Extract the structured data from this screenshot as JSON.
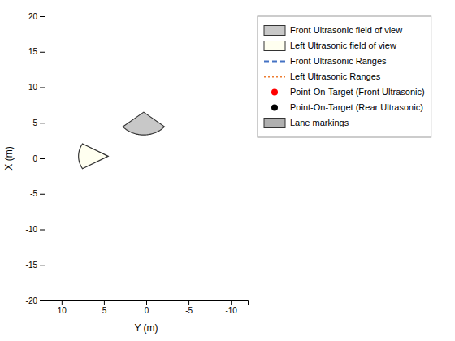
{
  "chart_data": {
    "type": "wedge",
    "xlabel": "Y (m)",
    "ylabel": "X (m)",
    "xlim": [
      12,
      -12
    ],
    "ylim": [
      -20,
      20
    ],
    "xticks": [
      10,
      5,
      0,
      -5,
      -10
    ],
    "yticks": [
      -20,
      -15,
      -10,
      -5,
      0,
      5,
      10,
      15,
      20
    ],
    "grid": false,
    "legend": "right",
    "series": [
      {
        "name": "Front Ultrasonic field of view",
        "type": "patch",
        "color": "#c8c8c8",
        "center": [
          0.3,
          6.5
        ],
        "radius": 3.2,
        "theta1": 220,
        "theta2": 320
      },
      {
        "name": "Left Ultrasonic field of view",
        "type": "patch",
        "color": "#fffff0",
        "center": [
          4.5,
          0.3
        ],
        "radius": 3.5,
        "theta1": 330,
        "theta2": 30
      },
      {
        "name": "Front Ultrasonic Ranges",
        "type": "line",
        "color": "#4472c4",
        "line_style": "dashed"
      },
      {
        "name": "Left Ultrasonic Ranges",
        "type": "line",
        "color": "#ed7d31",
        "line_style": "dotted"
      },
      {
        "name": "Point-On-Target (Front Ultrasonic)",
        "type": "marker",
        "color": "#ff0000",
        "marker": "circle"
      },
      {
        "name": "Point-On-Target (Rear Ultrasonic)",
        "type": "marker",
        "color": "#000000",
        "marker": "circle"
      },
      {
        "name": "Lane markings",
        "type": "patch",
        "color": "#b0b0b0"
      }
    ]
  }
}
